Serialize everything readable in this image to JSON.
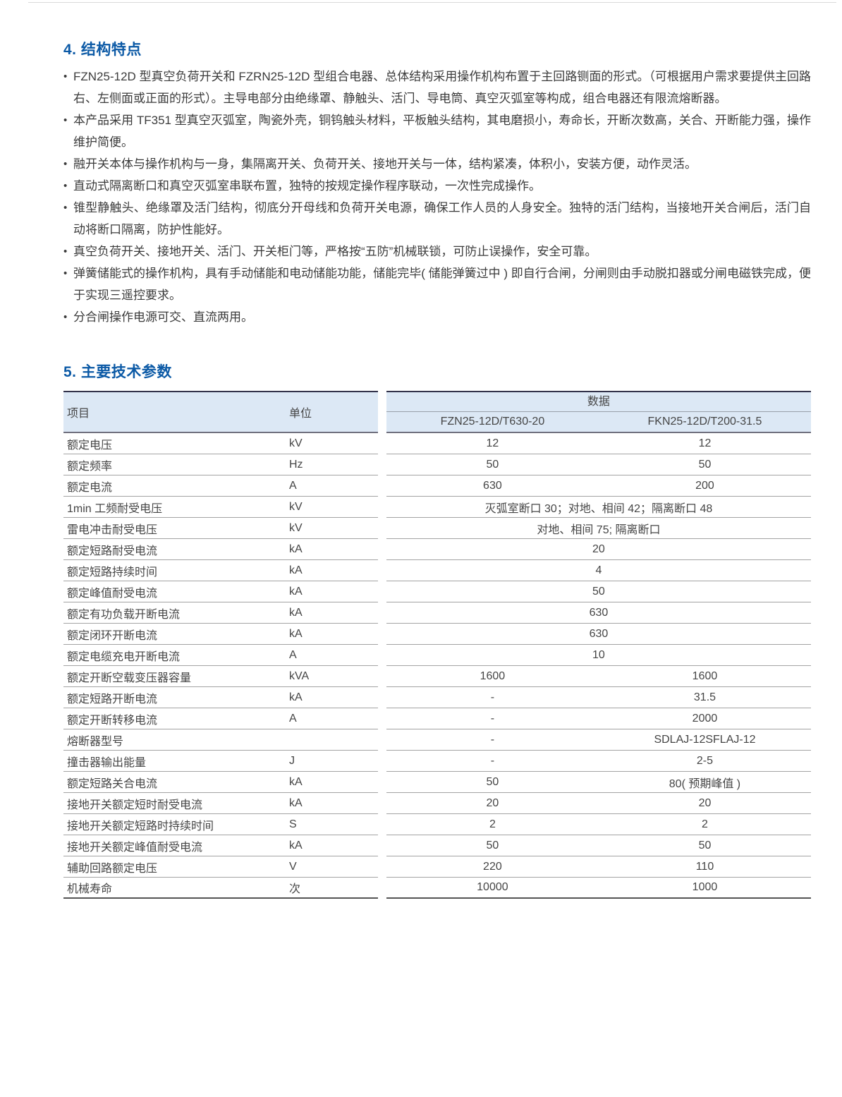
{
  "colors": {
    "accent": "#0c5aa6",
    "table_header_bg": "#dce8f5"
  },
  "section4": {
    "heading": "4. 结构特点",
    "bullet_glyph": "•",
    "bullets": [
      "FZN25-12D 型真空负荷开关和 FZRN25-12D 型组合电器、总体结构采用操作机构布置于主回路铡面的形式。（可根据用户需求要提供主回路右、左侧面或正面的形式）。主导电部分由绝缘罩、静触头、活门、导电筒、真空灭弧室等构成，组合电器还有限流熔断器。",
      "本产品采用 TF351 型真空灭弧室，陶瓷外壳，铜钨触头材料，平板触头结构，其电磨损小，寿命长，开断次数高，关合、开断能力强，操作维护简便。",
      "融开关本体与操作机构与一身，集隔离开关、负荷开关、接地开关与一体，结构紧凑，体积小，安装方便，动作灵活。",
      "直动式隔离断口和真空灭弧室串联布置，独特的按规定操作程序联动，一次性完成操作。",
      "锥型静触头、绝缘罩及活门结构，彻底分开母线和负荷开关电源，确保工作人员的人身安全。独特的活门结构，当接地开关合闸后，活门自动将断口隔离，防护性能好。",
      "真空负荷开关、接地开关、活门、开关柜门等，严格按“五防”机械联锁，可防止误操作，安全可靠。",
      "弹簧储能式的操作机构，具有手动储能和电动储能功能，储能完毕( 储能弹簧过中 ) 即自行合闸，分闸则由手动脱扣器或分闸电磁铁完成，便于实现三遥控要求。",
      "分合闸操作电源可交、直流两用。"
    ]
  },
  "section5": {
    "heading": "5. 主要技术参数",
    "table": {
      "header": {
        "item": "项目",
        "unit": "单位",
        "data_group": "数据",
        "model1": "FZN25-12D/T630-20",
        "model2": "FKN25-12D/T200-31.5"
      },
      "rows": [
        {
          "item": "额定电压",
          "unit": "kV",
          "v1": "12",
          "v2": "12"
        },
        {
          "item": "额定频率",
          "unit": "Hz",
          "v1": "50",
          "v2": "50"
        },
        {
          "item": "额定电流",
          "unit": "A",
          "v1": "630",
          "v2": "200"
        },
        {
          "item": "1min 工频耐受电压",
          "unit": "kV",
          "span": "灭弧室断口 30；对地、相间 42；隔离断口 48"
        },
        {
          "item": "雷电冲击耐受电压",
          "unit": "kV",
          "span": "对地、相间 75; 隔离断口"
        },
        {
          "item": "额定短路耐受电流",
          "unit": "kA",
          "span": "20"
        },
        {
          "item": "额定短路持续时间",
          "unit": "kA",
          "span": "4"
        },
        {
          "item": "额定峰值耐受电流",
          "unit": "kA",
          "span": "50"
        },
        {
          "item": "额定有功负载开断电流",
          "unit": "kA",
          "span": "630"
        },
        {
          "item": "额定闭环开断电流",
          "unit": "kA",
          "span": "630"
        },
        {
          "item": "额定电缆充电开断电流",
          "unit": "A",
          "span": "10"
        },
        {
          "item": "额定开断空载变压器容量",
          "unit": "kVA",
          "v1": "1600",
          "v2": "1600"
        },
        {
          "item": "额定短路开断电流",
          "unit": "kA",
          "v1": "-",
          "v2": "31.5"
        },
        {
          "item": "额定开断转移电流",
          "unit": "A",
          "v1": "-",
          "v2": "2000"
        },
        {
          "item": "熔断器型号",
          "unit": "",
          "v1": "-",
          "v2": "SDLAJ-12SFLAJ-12"
        },
        {
          "item": "撞击器输出能量",
          "unit": "J",
          "v1": "-",
          "v2": "2-5"
        },
        {
          "item": "额定短路关合电流",
          "unit": "kA",
          "v1": "50",
          "v2": "80( 预期峰值 )"
        },
        {
          "item": "接地开关额定短时耐受电流",
          "unit": "kA",
          "v1": "20",
          "v2": "20"
        },
        {
          "item": "接地开关额定短路时持续时间",
          "unit": "S",
          "v1": "2",
          "v2": "2"
        },
        {
          "item": "接地开关额定峰值耐受电流",
          "unit": "kA",
          "v1": "50",
          "v2": "50"
        },
        {
          "item": "辅助回路额定电压",
          "unit": "V",
          "v1": "220",
          "v2": "110"
        },
        {
          "item": "机械寿命",
          "unit": "次",
          "v1": "10000",
          "v2": "1000"
        }
      ]
    }
  }
}
